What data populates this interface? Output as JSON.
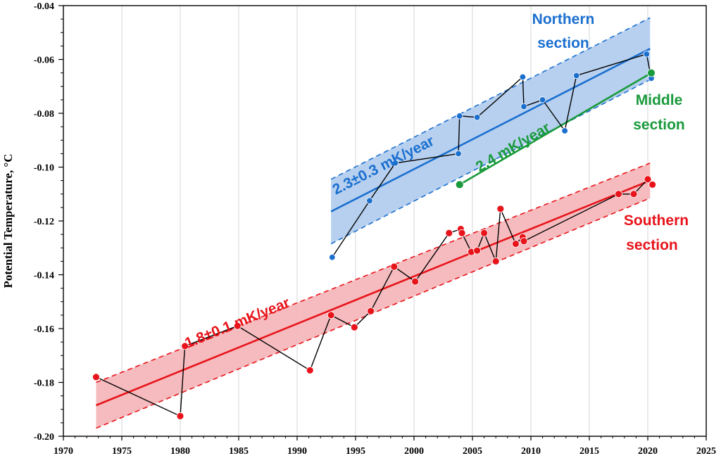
{
  "chart_data": {
    "type": "scatter",
    "title": "",
    "xlabel": "",
    "ylabel": "Potential Temperature, °C",
    "xlim": [
      1970,
      2025
    ],
    "ylim": [
      -0.2,
      -0.04
    ],
    "xticks": [
      "1970",
      "1975",
      "1980",
      "1985",
      "1990",
      "1995",
      "2000",
      "2005",
      "2010",
      "2015",
      "2020",
      "2025"
    ],
    "yticks": [
      "-0.20",
      "-0.18",
      "-0.16",
      "-0.14",
      "-0.12",
      "-0.10",
      "-0.08",
      "-0.06",
      "-0.04"
    ],
    "grid": true,
    "series": [
      {
        "name": "Southern section",
        "color": "#e8141b",
        "x": [
          1972.8,
          1980.0,
          1980.4,
          1984.9,
          1991.1,
          1992.9,
          1994.9,
          1996.3,
          1998.3,
          2000.1,
          2003.0,
          2004.0,
          2004.1,
          2004.9,
          2005.4,
          2006.0,
          2007.0,
          2007.4,
          2008.7,
          2009.3,
          2009.4,
          2017.5,
          2018.8,
          2020.0,
          2020.4
        ],
        "y": [
          -0.178,
          -0.1925,
          -0.1665,
          -0.159,
          -0.1755,
          -0.155,
          -0.1595,
          -0.1535,
          -0.137,
          -0.1425,
          -0.1245,
          -0.123,
          -0.1245,
          -0.1315,
          -0.131,
          -0.1245,
          -0.135,
          -0.1155,
          -0.1285,
          -0.126,
          -0.1275,
          -0.11,
          -0.11,
          -0.1045,
          -0.1065
        ],
        "trend": {
          "label": "1.8±0.1 mK/year",
          "x": [
            1972.8,
            2020.2
          ],
          "y": [
            -0.1885,
            -0.105
          ],
          "band_upper": [
            -0.18,
            -0.0985
          ],
          "band_lower": [
            -0.197,
            -0.1115
          ]
        }
      },
      {
        "name": "Northern section",
        "color": "#1a6fcf",
        "x": [
          1993.0,
          1996.2,
          1998.4,
          2003.8,
          2003.9,
          2005.4,
          2009.3,
          2009.4,
          2011.0,
          2012.9,
          2013.9,
          2019.9,
          2020.3
        ],
        "y": [
          -0.1335,
          -0.1125,
          -0.0985,
          -0.095,
          -0.081,
          -0.0815,
          -0.0665,
          -0.0775,
          -0.075,
          -0.0865,
          -0.066,
          -0.058,
          -0.067
        ],
        "trend": {
          "label": "2.3±0.3 mK/year",
          "x": [
            1992.9,
            2020.2
          ],
          "y": [
            -0.1165,
            -0.056
          ],
          "band_upper": [
            -0.1045,
            -0.0445
          ],
          "band_lower": [
            -0.1285,
            -0.0675
          ]
        }
      },
      {
        "name": "Middle section",
        "color": "#1a9a3c",
        "x": [
          2003.9,
          2020.3
        ],
        "y": [
          -0.1065,
          -0.065
        ],
        "trend": {
          "label": "2.4 mK/year",
          "x": [
            2003.9,
            2020.3
          ],
          "y": [
            -0.1065,
            -0.065
          ]
        }
      }
    ],
    "annotations": [
      {
        "text": [
          "Northern",
          "section"
        ],
        "color": "#1a6fcf"
      },
      {
        "text": [
          "Middle",
          "section"
        ],
        "color": "#1a9a3c"
      },
      {
        "text": [
          "Southern",
          "section"
        ],
        "color": "#e8141b"
      }
    ]
  }
}
